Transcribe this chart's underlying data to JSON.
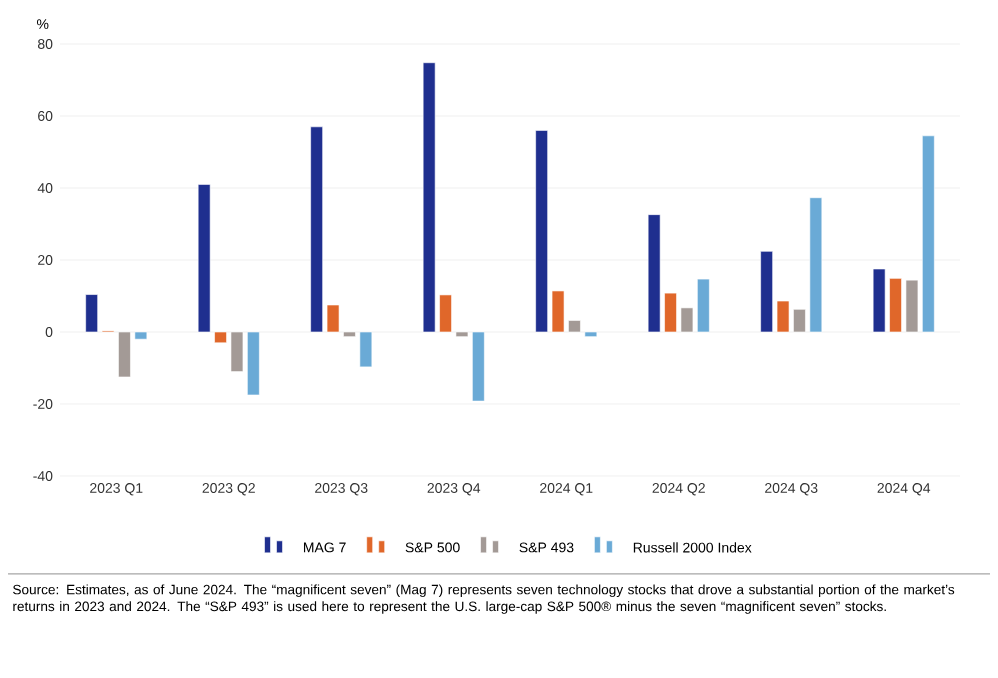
{
  "chart_data": {
    "type": "bar",
    "ylabel": "%",
    "categories": [
      "2023 Q1",
      "2023 Q2",
      "2023 Q3",
      "2023 Q4",
      "2024 Q1",
      "2024 Q2",
      "2024 Q3",
      "2024 Q4"
    ],
    "series": [
      {
        "name": "MAG 7",
        "color": "#1f2f8f",
        "values": [
          10.4,
          41,
          57,
          74.8,
          56,
          32.6,
          22.4,
          17.5
        ]
      },
      {
        "name": "S&P 500",
        "color": "#e0672a",
        "values": [
          0.3,
          -3,
          7.5,
          10.3,
          11.4,
          10.8,
          8.6,
          14.9
        ]
      },
      {
        "name": "S&P 493",
        "color": "#a39a96",
        "values": [
          -12.5,
          -11,
          -1.3,
          -1.3,
          3.2,
          6.7,
          6.3,
          14.4
        ]
      },
      {
        "name": "Russell 2000 Index",
        "color": "#6aaad6",
        "values": [
          -2,
          -17.5,
          -9.7,
          -19.2,
          -1.3,
          14.7,
          37.3,
          54.5
        ]
      }
    ],
    "ylim": [
      -40,
      80
    ],
    "yticks": [
      -40,
      -20,
      0,
      20,
      40,
      60,
      80
    ],
    "grid": "y",
    "legend": "bottom",
    "annotations": [
      "Source: Estimates, as of June 2024. The “magnificent seven” (Mag 7) represents seven technology stocks that drove a substantial portion of the market’s returns in 2023 and 2024. The “S&P 493” is used here to represent the U.S. large-cap S&P 500® minus the seven “magnificent seven” stocks."
    ]
  }
}
